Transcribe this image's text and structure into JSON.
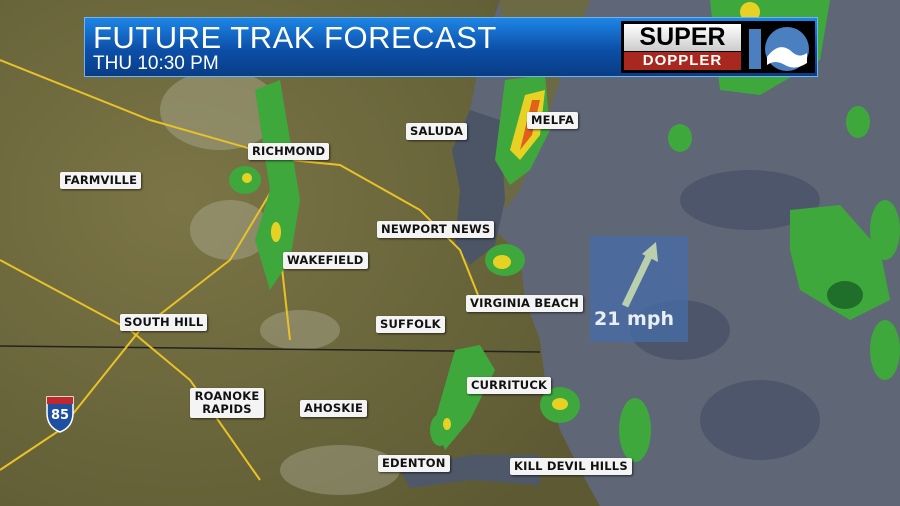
{
  "header": {
    "title": "FUTURE TRAK FORECAST",
    "subtitle": "THU  10:30 PM"
  },
  "logo": {
    "line1": "SUPER",
    "line2": "DOPPLER",
    "mark": "10"
  },
  "wind": {
    "speed_label": "21 mph",
    "direction": "northeast",
    "icon": "wind-arrow-icon"
  },
  "highway": {
    "shield_label": "85",
    "icon": "interstate-shield-icon"
  },
  "cities": [
    {
      "name": "FARMVILLE"
    },
    {
      "name": "RICHMOND"
    },
    {
      "name": "SALUDA"
    },
    {
      "name": "MELFA"
    },
    {
      "name": "NEWPORT NEWS"
    },
    {
      "name": "WAKEFIELD"
    },
    {
      "name": "VIRGINIA BEACH"
    },
    {
      "name": "SOUTH HILL"
    },
    {
      "name": "SUFFOLK"
    },
    {
      "name": "CURRITUCK"
    },
    {
      "name": "ROANOKE RAPIDS"
    },
    {
      "name": "AHOSKIE"
    },
    {
      "name": "EDENTON"
    },
    {
      "name": "KILL DEVIL HILLS"
    }
  ],
  "colors": {
    "land": "#6f6a3e",
    "ocean": "#5f6676",
    "radar_light": "#3fa83c",
    "radar_mid": "#1f6e2a",
    "radar_heavy": "#e7d224",
    "radar_severe": "#e0601c",
    "header_blue": "#0c4fa8",
    "road": "#e8c227"
  }
}
